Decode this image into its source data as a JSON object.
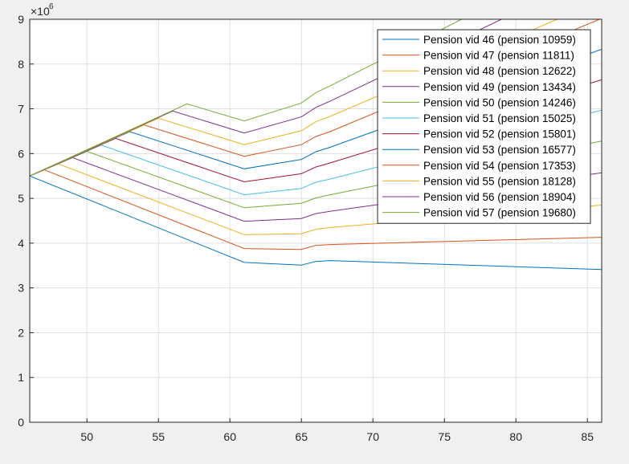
{
  "chart_data": {
    "type": "line",
    "title": "",
    "xlabel": "",
    "ylabel": "",
    "xlim": [
      46,
      86
    ],
    "ylim": [
      0,
      9000000
    ],
    "y_exponent_label": "×10",
    "y_exponent_power": "6",
    "xticks": [
      50,
      55,
      60,
      65,
      70,
      75,
      80,
      85
    ],
    "yticks": [
      0,
      1,
      2,
      3,
      4,
      5,
      6,
      7,
      8,
      9
    ],
    "grid": true,
    "legend_position": "top-right",
    "series": [
      {
        "name": "Pension vid 46 (pension 10959)",
        "color": "#0072BD",
        "points": [
          [
            46,
            5.5
          ],
          [
            61,
            3.57
          ],
          [
            65,
            3.51
          ],
          [
            66,
            3.59
          ],
          [
            67,
            3.61
          ],
          [
            86,
            3.41
          ]
        ]
      },
      {
        "name": "Pension vid 47 (pension 11811)",
        "color": "#D95319",
        "points": [
          [
            46,
            5.5
          ],
          [
            47,
            5.64
          ],
          [
            61,
            3.88
          ],
          [
            65,
            3.86
          ],
          [
            66,
            3.95
          ],
          [
            67,
            3.97
          ],
          [
            86,
            4.13
          ]
        ]
      },
      {
        "name": "Pension vid 48 (pension 12622)",
        "color": "#EDB120",
        "points": [
          [
            46,
            5.5
          ],
          [
            48,
            5.77
          ],
          [
            61,
            4.19
          ],
          [
            65,
            4.21
          ],
          [
            66,
            4.31
          ],
          [
            67,
            4.35
          ],
          [
            86,
            4.85
          ]
        ]
      },
      {
        "name": "Pension vid 49 (pension 13434)",
        "color": "#7E2F8E",
        "points": [
          [
            46,
            5.5
          ],
          [
            49,
            5.91
          ],
          [
            61,
            4.49
          ],
          [
            65,
            4.55
          ],
          [
            66,
            4.66
          ],
          [
            67,
            4.71
          ],
          [
            86,
            5.57
          ]
        ]
      },
      {
        "name": "Pension vid 50 (pension 14246)",
        "color": "#77AC30",
        "points": [
          [
            46,
            5.5
          ],
          [
            50,
            6.05
          ],
          [
            61,
            4.79
          ],
          [
            65,
            4.89
          ],
          [
            66,
            5.01
          ],
          [
            67,
            5.08
          ],
          [
            86,
            6.28
          ]
        ]
      },
      {
        "name": "Pension vid 51 (pension 15025)",
        "color": "#4DBEEE",
        "points": [
          [
            46,
            5.5
          ],
          [
            51,
            6.19
          ],
          [
            61,
            5.08
          ],
          [
            65,
            5.22
          ],
          [
            66,
            5.36
          ],
          [
            67,
            5.43
          ],
          [
            86,
            6.97
          ]
        ]
      },
      {
        "name": "Pension vid 52 (pension 15801)",
        "color": "#A2142F",
        "points": [
          [
            46,
            5.5
          ],
          [
            52,
            6.34
          ],
          [
            61,
            5.37
          ],
          [
            65,
            5.55
          ],
          [
            66,
            5.7
          ],
          [
            67,
            5.79
          ],
          [
            86,
            7.65
          ]
        ]
      },
      {
        "name": "Pension vid 53 (pension 16577)",
        "color": "#0072BD",
        "points": [
          [
            46,
            5.5
          ],
          [
            53,
            6.49
          ],
          [
            61,
            5.66
          ],
          [
            65,
            5.87
          ],
          [
            66,
            6.04
          ],
          [
            67,
            6.14
          ],
          [
            86,
            8.33
          ]
        ]
      },
      {
        "name": "Pension vid 54 (pension 17353)",
        "color": "#D95319",
        "points": [
          [
            46,
            5.5
          ],
          [
            54,
            6.64
          ],
          [
            61,
            5.94
          ],
          [
            65,
            6.2
          ],
          [
            66,
            6.38
          ],
          [
            67,
            6.49
          ],
          [
            86,
            9.02
          ]
        ]
      },
      {
        "name": "Pension vid 55 (pension 18128)",
        "color": "#EDB120",
        "points": [
          [
            46,
            5.5
          ],
          [
            55,
            6.79
          ],
          [
            61,
            6.2
          ],
          [
            65,
            6.51
          ],
          [
            66,
            6.71
          ],
          [
            67,
            6.83
          ],
          [
            82.9,
            9.0
          ]
        ]
      },
      {
        "name": "Pension vid 56 (pension 18904)",
        "color": "#7E2F8E",
        "points": [
          [
            46,
            5.5
          ],
          [
            56,
            6.95
          ],
          [
            61,
            6.46
          ],
          [
            65,
            6.82
          ],
          [
            66,
            7.03
          ],
          [
            67,
            7.17
          ],
          [
            79,
            9.0
          ]
        ]
      },
      {
        "name": "Pension vid 57 (pension 19680)",
        "color": "#77AC30",
        "points": [
          [
            46,
            5.5
          ],
          [
            57,
            7.11
          ],
          [
            61,
            6.73
          ],
          [
            65,
            7.13
          ],
          [
            66,
            7.36
          ],
          [
            67,
            7.51
          ],
          [
            76.2,
            9.0
          ]
        ]
      }
    ]
  }
}
